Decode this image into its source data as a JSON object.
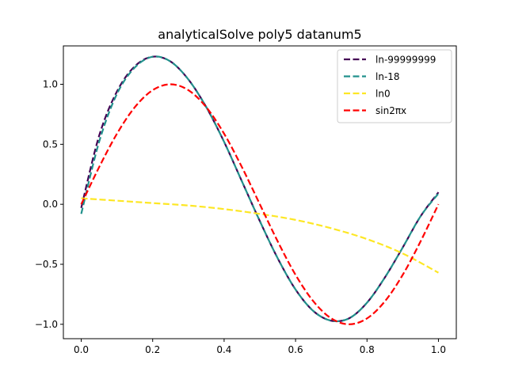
{
  "chart_data": {
    "type": "line",
    "title": "analyticalSolve poly5 datanum5",
    "xlabel": "",
    "ylabel": "",
    "xlim": [
      -0.05,
      1.05
    ],
    "ylim": [
      -1.12,
      1.32
    ],
    "grid": false,
    "legend_position": "top-right",
    "x_ticks": [
      0.0,
      0.2,
      0.4,
      0.6,
      0.8,
      1.0
    ],
    "x_tick_labels": [
      "0.0",
      "0.2",
      "0.4",
      "0.6",
      "0.8",
      "1.0"
    ],
    "y_ticks": [
      -1.0,
      -0.5,
      0.0,
      0.5,
      1.0
    ],
    "y_tick_labels": [
      "−1.0",
      "−0.5",
      "0.0",
      "0.5",
      "1.0"
    ],
    "series": [
      {
        "name": "ln-99999999",
        "color": "#440154",
        "style": "dashed",
        "x": [
          0.0,
          0.05,
          0.1,
          0.15,
          0.2,
          0.25,
          0.3,
          0.35,
          0.4,
          0.45,
          0.5,
          0.55,
          0.6,
          0.65,
          0.7,
          0.75,
          0.8,
          0.85,
          0.9,
          0.95,
          1.0
        ],
        "y": [
          -0.03,
          0.57,
          0.94,
          1.15,
          1.23,
          1.19,
          1.04,
          0.81,
          0.52,
          0.19,
          -0.14,
          -0.45,
          -0.71,
          -0.89,
          -0.97,
          -0.95,
          -0.82,
          -0.61,
          -0.36,
          -0.1,
          0.1
        ]
      },
      {
        "name": "ln-18",
        "color": "#21918c",
        "style": "dashed",
        "x": [
          0.0,
          0.05,
          0.1,
          0.15,
          0.2,
          0.25,
          0.3,
          0.35,
          0.4,
          0.45,
          0.5,
          0.55,
          0.6,
          0.65,
          0.7,
          0.75,
          0.8,
          0.85,
          0.9,
          0.95,
          1.0
        ],
        "y": [
          -0.08,
          0.52,
          0.92,
          1.14,
          1.23,
          1.19,
          1.04,
          0.81,
          0.52,
          0.19,
          -0.14,
          -0.45,
          -0.71,
          -0.89,
          -0.97,
          -0.95,
          -0.82,
          -0.61,
          -0.36,
          -0.1,
          0.09
        ]
      },
      {
        "name": "ln0",
        "color": "#fde725",
        "style": "dashed",
        "x": [
          0.0,
          0.1,
          0.2,
          0.3,
          0.4,
          0.5,
          0.6,
          0.7,
          0.8,
          0.9,
          1.0
        ],
        "y": [
          0.05,
          0.03,
          0.01,
          -0.01,
          -0.04,
          -0.08,
          -0.13,
          -0.2,
          -0.29,
          -0.41,
          -0.57
        ]
      },
      {
        "name": "sin2πx",
        "color": "#ff0000",
        "style": "dashed",
        "x": [
          0.0,
          0.05,
          0.1,
          0.15,
          0.2,
          0.25,
          0.3,
          0.35,
          0.4,
          0.45,
          0.5,
          0.55,
          0.6,
          0.65,
          0.7,
          0.75,
          0.8,
          0.85,
          0.9,
          0.95,
          1.0
        ],
        "y": [
          0.0,
          0.309,
          0.588,
          0.809,
          0.951,
          1.0,
          0.951,
          0.809,
          0.588,
          0.309,
          0.0,
          -0.309,
          -0.588,
          -0.809,
          -0.951,
          -1.0,
          -0.951,
          -0.809,
          -0.588,
          -0.309,
          0.0
        ]
      }
    ]
  }
}
